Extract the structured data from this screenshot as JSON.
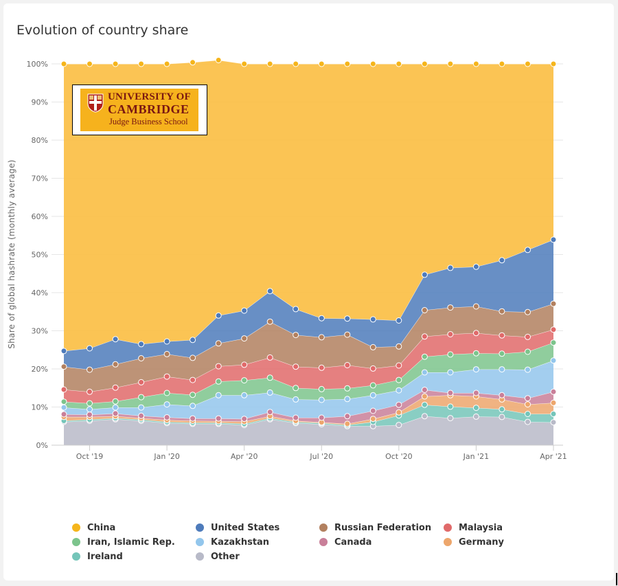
{
  "title": "Evolution of country share",
  "logo": {
    "line1": "UNIVERSITY OF",
    "line2": "CAMBRIDGE",
    "line3": "Judge Business School"
  },
  "colors": {
    "china": "#fbbf45",
    "china_marker": "#f5b51b",
    "united_states": "#4e7bbb",
    "russian_federation": "#b2805f",
    "malaysia": "#e06a6a",
    "iran": "#7cc48c",
    "kazakhstan": "#93c6ec",
    "canada": "#c97f99",
    "germany": "#eda66c",
    "ireland": "#74c5b9",
    "other": "#b8bac8"
  },
  "chart_data": {
    "type": "area",
    "stacked": true,
    "ylabel": "Share of global hashrate (monthly average)",
    "ylim": [
      0,
      100
    ],
    "yticks": [
      0,
      10,
      20,
      30,
      40,
      50,
      60,
      70,
      80,
      90,
      100
    ],
    "ytick_labels": [
      "0%",
      "10%",
      "20%",
      "30%",
      "40%",
      "50%",
      "60%",
      "70%",
      "80%",
      "90%",
      "100%"
    ],
    "x": [
      "2019-09",
      "2019-10",
      "2019-11",
      "2019-12",
      "2020-01",
      "2020-02",
      "2020-03",
      "2020-04",
      "2020-05",
      "2020-06",
      "2020-07",
      "2020-08",
      "2020-09",
      "2020-10",
      "2020-11",
      "2020-12",
      "2021-01",
      "2021-02",
      "2021-03",
      "2021-04"
    ],
    "xtick_labels": [
      "Oct '19",
      "Jan '20",
      "Apr '20",
      "Jul '20",
      "Oct '20",
      "Jan '21",
      "Apr '21"
    ],
    "xtick_index": [
      1,
      4,
      7,
      10,
      13,
      16,
      19
    ],
    "legend_position": "bottom",
    "series": [
      {
        "name": "Other",
        "key": "other",
        "values": [
          6.1,
          6.4,
          6.8,
          6.4,
          5.8,
          5.6,
          5.6,
          5.3,
          6.8,
          5.8,
          5.5,
          5.0,
          5.0,
          5.3,
          7.6,
          7.1,
          7.5,
          7.4,
          6.1,
          6.0
        ]
      },
      {
        "name": "Ireland",
        "key": "ireland",
        "values": [
          0.3,
          0.3,
          0.3,
          0.3,
          0.3,
          0.3,
          0.3,
          0.3,
          0.3,
          0.3,
          0.3,
          0.3,
          1.1,
          2.5,
          3.0,
          3.0,
          2.3,
          2.0,
          2.1,
          2.2
        ]
      },
      {
        "name": "Germany",
        "key": "germany",
        "values": [
          1.0,
          0.7,
          0.5,
          0.4,
          0.5,
          0.5,
          0.4,
          0.6,
          0.5,
          0.3,
          0.2,
          0.3,
          0.8,
          0.8,
          2.2,
          3.0,
          3.0,
          2.6,
          2.5,
          2.9
        ]
      },
      {
        "name": "Canada",
        "key": "canada",
        "values": [
          0.7,
          0.6,
          0.7,
          0.6,
          0.7,
          0.6,
          0.7,
          0.7,
          1.1,
          0.8,
          1.2,
          2.0,
          2.1,
          2.0,
          1.7,
          0.6,
          0.9,
          1.1,
          1.6,
          2.9
        ]
      },
      {
        "name": "Kazakhstan",
        "key": "kazakhstan",
        "values": [
          1.8,
          1.4,
          1.6,
          2.2,
          3.4,
          3.3,
          6.1,
          6.2,
          5.1,
          4.8,
          4.7,
          4.5,
          4.1,
          3.8,
          4.6,
          5.4,
          6.2,
          6.8,
          7.5,
          8.2
        ]
      },
      {
        "name": "Iran, Islamic Rep.",
        "key": "iran",
        "values": [
          1.5,
          1.6,
          1.6,
          2.7,
          3.0,
          2.9,
          3.6,
          3.9,
          3.9,
          3.0,
          2.8,
          2.8,
          2.6,
          2.7,
          4.1,
          4.7,
          4.2,
          4.1,
          4.7,
          4.7
        ]
      },
      {
        "name": "Malaysia",
        "key": "malaysia",
        "values": [
          3.2,
          3.0,
          3.6,
          3.9,
          4.3,
          3.9,
          4.0,
          4.1,
          5.3,
          5.6,
          5.6,
          6.1,
          4.4,
          3.8,
          5.3,
          5.3,
          5.3,
          4.8,
          3.9,
          3.4
        ]
      },
      {
        "name": "Russian Federation",
        "key": "russian_federation",
        "values": [
          6.0,
          5.8,
          6.1,
          6.3,
          5.9,
          5.8,
          6.0,
          6.9,
          9.4,
          8.3,
          8.0,
          8.0,
          5.6,
          5.0,
          6.9,
          7.0,
          7.0,
          6.3,
          6.5,
          6.8
        ]
      },
      {
        "name": "United States",
        "key": "united_states",
        "values": [
          4.1,
          5.6,
          6.6,
          3.7,
          3.3,
          4.7,
          7.3,
          7.3,
          8.0,
          6.8,
          5.0,
          4.2,
          7.3,
          6.8,
          9.3,
          10.4,
          10.4,
          13.4,
          16.3,
          16.8
        ]
      },
      {
        "name": "China",
        "key": "china",
        "values": [
          75.3,
          74.6,
          72.2,
          73.5,
          72.8,
          72.8,
          67.0,
          64.7,
          59.6,
          64.3,
          66.7,
          66.8,
          67.0,
          67.3,
          55.3,
          53.5,
          53.2,
          51.5,
          48.8,
          46.1
        ]
      }
    ]
  },
  "legend": [
    {
      "label": "China",
      "key": "china"
    },
    {
      "label": "United States",
      "key": "united_states"
    },
    {
      "label": "Russian Federation",
      "key": "russian_federation"
    },
    {
      "label": "Malaysia",
      "key": "malaysia"
    },
    {
      "label": "Iran, Islamic Rep.",
      "key": "iran"
    },
    {
      "label": "Kazakhstan",
      "key": "kazakhstan"
    },
    {
      "label": "Canada",
      "key": "canada"
    },
    {
      "label": "Germany",
      "key": "germany"
    },
    {
      "label": "Ireland",
      "key": "ireland"
    },
    {
      "label": "Other",
      "key": "other"
    }
  ]
}
